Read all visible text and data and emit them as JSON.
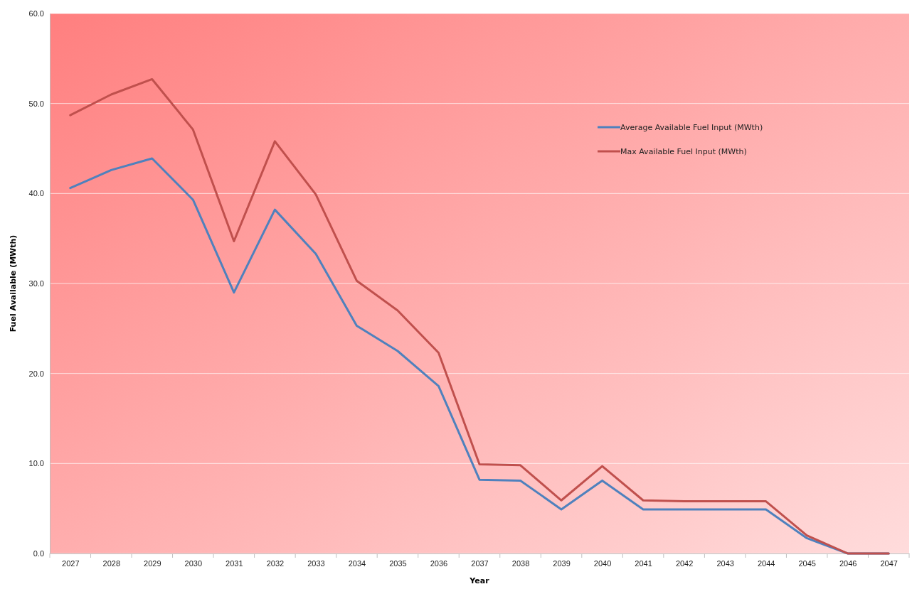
{
  "chart_data": {
    "type": "line",
    "xlabel": "Year",
    "ylabel": "Fuel Available (MWth)",
    "categories": [
      "2027",
      "2028",
      "2029",
      "2030",
      "2031",
      "2032",
      "2033",
      "2034",
      "2035",
      "2036",
      "2037",
      "2038",
      "2039",
      "2040",
      "2041",
      "2042",
      "2043",
      "2044",
      "2045",
      "2046",
      "2047"
    ],
    "series": [
      {
        "name": "Average Available Fuel Input (MWth)",
        "color": "#4f81bd",
        "values": [
          40.6,
          42.6,
          43.9,
          39.3,
          29.0,
          38.2,
          33.3,
          25.3,
          22.5,
          18.6,
          8.2,
          8.1,
          4.9,
          8.1,
          4.9,
          4.9,
          4.9,
          4.9,
          1.7,
          0,
          0
        ]
      },
      {
        "name": "Max Available Fuel Input (MWth)",
        "color": "#c0504d",
        "values": [
          48.7,
          51.0,
          52.7,
          47.1,
          34.7,
          45.8,
          39.9,
          30.3,
          27.0,
          22.3,
          9.9,
          9.8,
          5.9,
          9.7,
          5.9,
          5.8,
          5.8,
          5.8,
          2.0,
          0,
          0
        ]
      }
    ],
    "ylim": [
      0,
      60
    ],
    "yticks": [
      {
        "value": 0,
        "label": "0.0"
      },
      {
        "value": 10,
        "label": "10.0"
      },
      {
        "value": 20,
        "label": "20.0"
      },
      {
        "value": 30,
        "label": "30.0"
      },
      {
        "value": 40,
        "label": "40.0"
      },
      {
        "value": 50,
        "label": "50.0"
      },
      {
        "value": 60,
        "label": "60.0"
      }
    ],
    "grid": "y",
    "legend": "top right",
    "marker": "none",
    "line_style": "solid"
  }
}
